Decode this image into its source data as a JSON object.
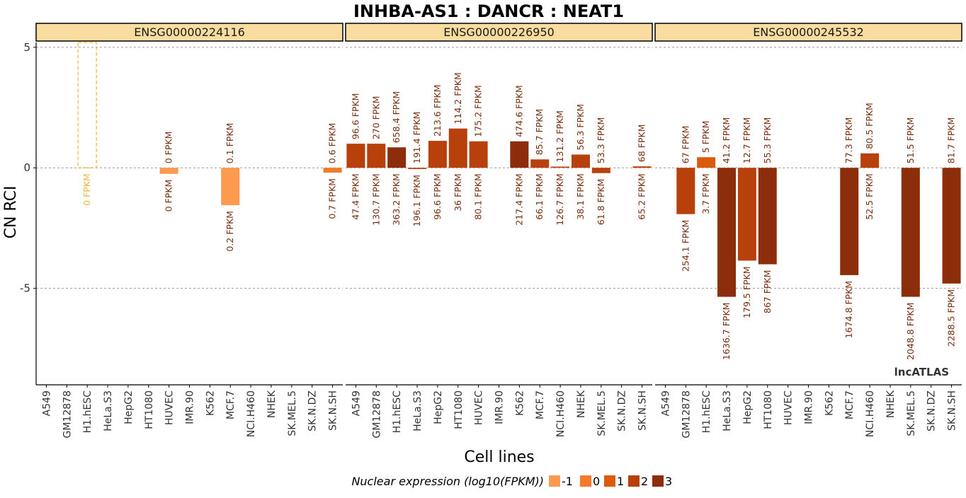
{
  "title": "INHBA-AS1 : DANCR : NEAT1",
  "y_label": "CN RCI",
  "x_label": "Cell lines",
  "legend_title": "Nuclear expression (log10(FPKM))",
  "legend_items": [
    {
      "label": "-1",
      "color": "#fc9a4f"
    },
    {
      "label": "0",
      "color": "#f47a2a"
    },
    {
      "label": "1",
      "color": "#dc5a0c"
    },
    {
      "label": "2",
      "color": "#b8410b"
    },
    {
      "label": "3",
      "color": "#8c2d0b"
    }
  ],
  "watermark": "lncATLAS",
  "chart_data": {
    "type": "bar",
    "ylim": [
      -9,
      5.2
    ],
    "yticks": [
      5,
      0,
      -5
    ],
    "grid": "dashed at ticks",
    "categories": [
      "A549",
      "GM12878",
      "H1.hESC",
      "HeLa.S3",
      "HepG2",
      "HT1080",
      "HUVEC",
      "IMR.90",
      "K562",
      "MCF.7",
      "NCI.H460",
      "NHEK",
      "SK.MEL.5",
      "SK.N.DZ",
      "SK.N.SH"
    ],
    "panels": [
      {
        "strip": "ENSG00000224116",
        "bars": [
          {
            "cat": 2,
            "value": 5.2,
            "level": -1,
            "dashed": true,
            "top_label": "",
            "bottom_label": "0 FPKM"
          },
          {
            "cat": 6,
            "value": -0.25,
            "level": -1,
            "top_label": "0 FPKM",
            "bottom_label": "0 FPKM"
          },
          {
            "cat": 9,
            "value": -1.55,
            "level": -1,
            "top_label": "0.1 FPKM",
            "bottom_label": "0.2 FPKM"
          },
          {
            "cat": 14,
            "value": -0.2,
            "level": 0,
            "top_label": "0.6 FPKM",
            "bottom_label": "0.7 FPKM"
          }
        ]
      },
      {
        "strip": "ENSG00000226950",
        "bars": [
          {
            "cat": 0,
            "value": 1.0,
            "level": 2,
            "top_label": "96.6 FPKM",
            "bottom_label": "47.4 FPKM"
          },
          {
            "cat": 1,
            "value": 1.0,
            "level": 2,
            "top_label": "270 FPKM",
            "bottom_label": "130.7 FPKM"
          },
          {
            "cat": 2,
            "value": 0.85,
            "level": 3,
            "top_label": "658.4 FPKM",
            "bottom_label": "363.2 FPKM"
          },
          {
            "cat": 3,
            "value": -0.05,
            "level": 2,
            "top_label": "191.4 FPKM",
            "bottom_label": "196.1 FPKM"
          },
          {
            "cat": 4,
            "value": 1.12,
            "level": 2,
            "top_label": "213.6 FPKM",
            "bottom_label": "96.6 FPKM"
          },
          {
            "cat": 5,
            "value": 1.63,
            "level": 2,
            "top_label": "114.2 FPKM",
            "bottom_label": "36 FPKM"
          },
          {
            "cat": 6,
            "value": 1.1,
            "level": 2,
            "top_label": "175.2 FPKM",
            "bottom_label": "80.1 FPKM"
          },
          {
            "cat": 8,
            "value": 1.1,
            "level": 3,
            "top_label": "474.6 FPKM",
            "bottom_label": "217.4 FPKM"
          },
          {
            "cat": 9,
            "value": 0.35,
            "level": 2,
            "top_label": "85.7 FPKM",
            "bottom_label": "66.1 FPKM"
          },
          {
            "cat": 10,
            "value": 0.05,
            "level": 2,
            "top_label": "131.2 FPKM",
            "bottom_label": "126.7 FPKM"
          },
          {
            "cat": 11,
            "value": 0.55,
            "level": 2,
            "top_label": "56.3 FPKM",
            "bottom_label": "38.1 FPKM"
          },
          {
            "cat": 12,
            "value": -0.22,
            "level": 2,
            "top_label": "53.3 FPKM",
            "bottom_label": "61.8 FPKM"
          },
          {
            "cat": 14,
            "value": 0.06,
            "level": 2,
            "top_label": "68 FPKM",
            "bottom_label": "65.2 FPKM"
          }
        ]
      },
      {
        "strip": "ENSG00000245532",
        "bars": [
          {
            "cat": 1,
            "value": -1.92,
            "level": 2,
            "top_label": "67 FPKM",
            "bottom_label": "254.1 FPKM"
          },
          {
            "cat": 2,
            "value": 0.44,
            "level": 1,
            "top_label": "5 FPKM",
            "bottom_label": "3.7 FPKM"
          },
          {
            "cat": 3,
            "value": -5.35,
            "level": 3,
            "top_label": "41.2 FPKM",
            "bottom_label": "1636.7 FPKM"
          },
          {
            "cat": 4,
            "value": -3.85,
            "level": 2,
            "top_label": "12.7 FPKM",
            "bottom_label": "179.5 FPKM"
          },
          {
            "cat": 5,
            "value": -4.0,
            "level": 3,
            "top_label": "55.3 FPKM",
            "bottom_label": "867 FPKM"
          },
          {
            "cat": 9,
            "value": -4.45,
            "level": 3,
            "top_label": "77.3 FPKM",
            "bottom_label": "1674.8 FPKM"
          },
          {
            "cat": 10,
            "value": 0.6,
            "level": 2,
            "top_label": "80.5 FPKM",
            "bottom_label": "52.5 FPKM"
          },
          {
            "cat": 12,
            "value": -5.35,
            "level": 3,
            "top_label": "51.5 FPKM",
            "bottom_label": "2048.8 FPKM"
          },
          {
            "cat": 14,
            "value": -4.8,
            "level": 3,
            "top_label": "81.7 FPKM",
            "bottom_label": "2288.5 FPKM"
          }
        ]
      }
    ]
  }
}
